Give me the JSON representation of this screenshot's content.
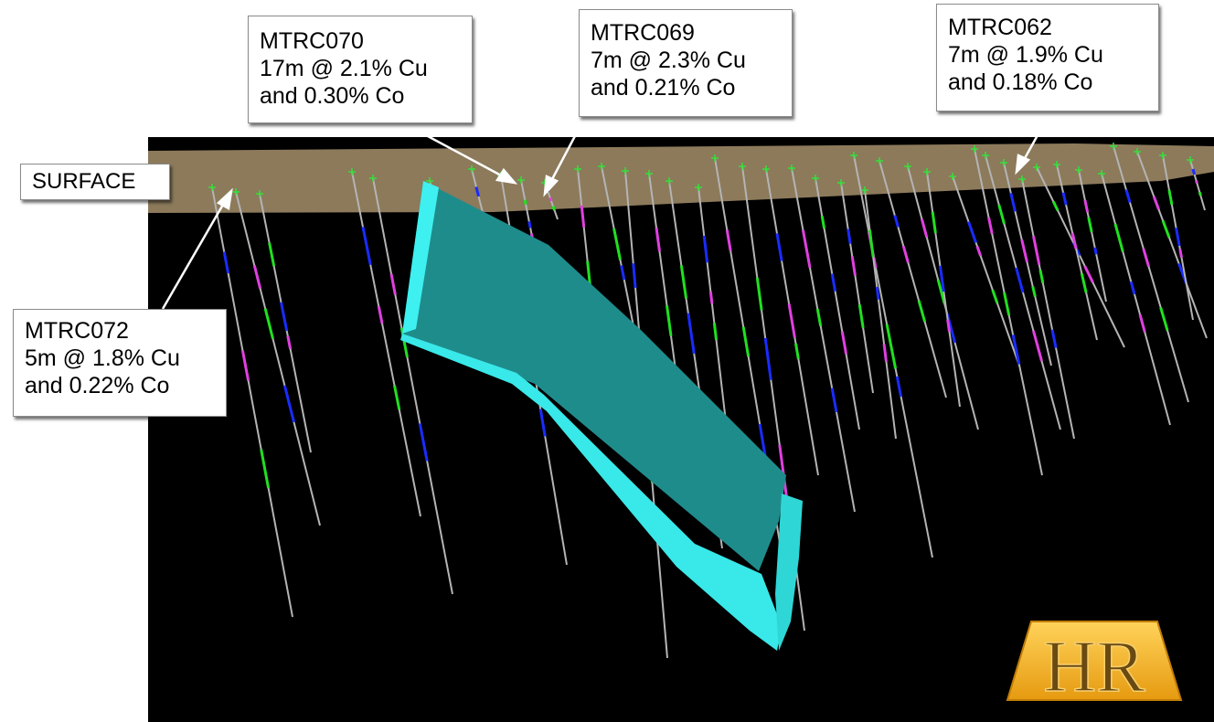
{
  "surface_label": "SURFACE",
  "callouts": [
    {
      "hole": "MTRC070",
      "line1": "17m @ 2.1% Cu",
      "line2": "and 0.30% Co"
    },
    {
      "hole": "MTRC069",
      "line1": "7m @ 2.3% Cu",
      "line2": "and 0.21% Co"
    },
    {
      "hole": "MTRC062",
      "line1": "7m @ 1.9% Cu",
      "line2": "and 0.18% Co"
    },
    {
      "hole": "MTRC072",
      "line1": "5m @ 1.8% Cu",
      "line2": "and 0.22% Co"
    }
  ],
  "logo": {
    "text": "HR"
  },
  "colors": {
    "background": "#000000",
    "surface_band": "#8c7a5b",
    "ore_body": "#2ee6e6",
    "drill_trace": "#b4b4b4",
    "collar_marker": "#35e03a",
    "assay_blue": "#1a2cff",
    "assay_magenta": "#e040e0",
    "assay_green": "#20e020",
    "logo_gold": "#f2b11c"
  }
}
